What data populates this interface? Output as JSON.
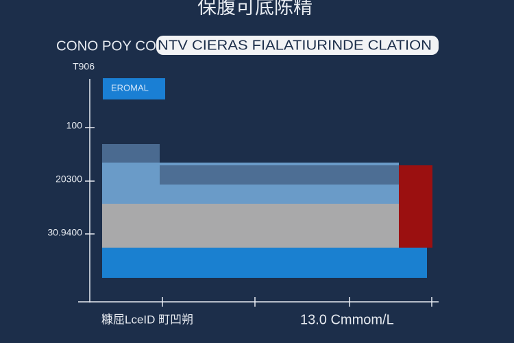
{
  "header": {
    "title": "保腹可底陈精",
    "subtitle_left": "CONO POY CO",
    "subtitle_highlight": "NTV CIERAS FIALATIURINDE CLATION"
  },
  "legend": {
    "label": "EROMAL"
  },
  "axis": {
    "y_labels": [
      "T906",
      "100",
      "20300",
      "30.9400"
    ],
    "x_left_label": "糠屈LceID 町凹朔",
    "x_right_label": "13.0 Cmmom/L"
  }
}
